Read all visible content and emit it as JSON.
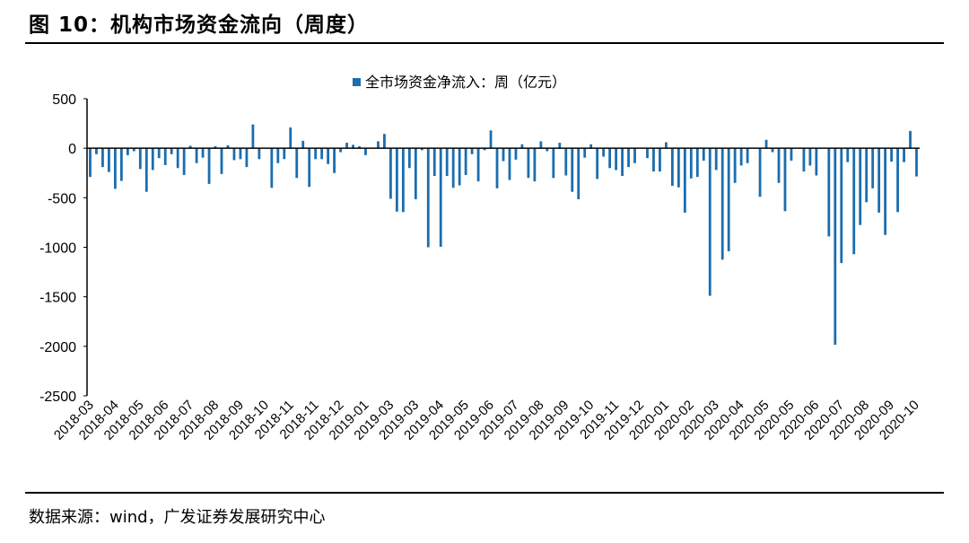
{
  "figure_title": "图 10：机构市场资金流向（周度）",
  "source": "数据来源：wind，广发证券发展研究中心",
  "chart_data": {
    "type": "bar",
    "title": "",
    "legend": {
      "entries": [
        "全市场资金净流入：周（亿元）"
      ],
      "placement": "top-center"
    },
    "series": [
      {
        "name": "全市场资金净流入：周（亿元）",
        "color": "#1B6DAE",
        "values": [
          -290,
          -60,
          -190,
          -240,
          -410,
          -330,
          -70,
          -30,
          -210,
          -440,
          -220,
          -100,
          -170,
          -60,
          -200,
          -270,
          25,
          -150,
          -95,
          -360,
          20,
          -260,
          30,
          -120,
          -110,
          -190,
          240,
          -110,
          0,
          -400,
          -150,
          -110,
          210,
          -300,
          75,
          -390,
          -110,
          -110,
          -160,
          -250,
          -40,
          55,
          35,
          20,
          -70,
          0,
          70,
          145,
          -510,
          -640,
          -645,
          -200,
          -515,
          -20,
          -1000,
          -280,
          -995,
          -280,
          -400,
          -375,
          -270,
          -60,
          -335,
          -20,
          180,
          -405,
          -130,
          -320,
          -115,
          40,
          -300,
          -335,
          70,
          -30,
          -300,
          55,
          -275,
          -440,
          -515,
          -95,
          40,
          -310,
          -85,
          -200,
          -220,
          -280,
          -190,
          -150,
          0,
          -100,
          -235,
          -235,
          60,
          -380,
          -395,
          -650,
          -305,
          -290,
          -125,
          -1490,
          -220,
          -1125,
          -1040,
          -350,
          -175,
          -150,
          0,
          -490,
          85,
          -40,
          -350,
          -635,
          -125,
          0,
          -235,
          -175,
          -275,
          0,
          -890,
          -1985,
          -1160,
          -140,
          -1070,
          -775,
          -545,
          -405,
          -650,
          -875,
          -135,
          -645,
          -140,
          175,
          -285
        ]
      }
    ],
    "x_tick_labels": [
      "2018-03",
      "2018-04",
      "2018-05",
      "2018-06",
      "2018-07",
      "2018-08",
      "2018-09",
      "2018-10",
      "2018-11",
      "2018-11",
      "2018-12",
      "2019-01",
      "2019-03",
      "2019-03",
      "2019-04",
      "2019-05",
      "2019-06",
      "2019-07",
      "2019-08",
      "2019-09",
      "2019-10",
      "2019-11",
      "2019-12",
      "2020-01",
      "2020-02",
      "2020-03",
      "2020-04",
      "2020-05",
      "2020-05",
      "2020-06",
      "2020-07",
      "2020-08",
      "2020-09",
      "2020-10"
    ],
    "y_ticks": [
      500,
      0,
      -500,
      -1000,
      -1500,
      -2000,
      -2500
    ],
    "ylim": [
      -2500,
      500
    ],
    "xlabel": "",
    "ylabel": "",
    "grid": false
  }
}
